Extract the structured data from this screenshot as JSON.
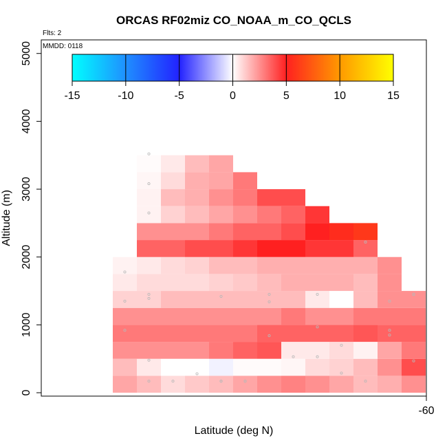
{
  "chart_data": {
    "type": "heatmap",
    "title": "ORCAS RF02miz CO_NOAA_m_CO_QCLS",
    "flights_label": "Flts: 2",
    "date_label": "MMDD: 0118",
    "xlabel": "Latitude (deg N)",
    "ylabel": "Altitude (m)",
    "x_tick_labels": [
      "-60"
    ],
    "y_tick_labels": [
      "0",
      "1000",
      "2000",
      "3000",
      "4000",
      "5000"
    ],
    "y_ticks": [
      0,
      1000,
      2000,
      3000,
      4000,
      5000
    ],
    "ylim": [
      -50,
      5200
    ],
    "colorbar": {
      "range": [
        -15,
        15
      ],
      "tick_labels": [
        "-15",
        "-10",
        "-5",
        "0",
        "5",
        "10",
        "15"
      ],
      "ticks": [
        -15,
        -10,
        -5,
        0,
        5,
        10,
        15
      ],
      "stops": [
        {
          "v": -15,
          "color": "#00ffff"
        },
        {
          "v": -10,
          "color": "#1f8fff"
        },
        {
          "v": -5,
          "color": "#2222ff"
        },
        {
          "v": 0,
          "color": "#ffffff"
        },
        {
          "v": 5,
          "color": "#ff2020"
        },
        {
          "v": 10,
          "color": "#ff9900"
        },
        {
          "v": 15,
          "color": "#ffff00"
        }
      ]
    },
    "altitude_bins_m": [
      0,
      250,
      500,
      750,
      1000,
      1250,
      1500,
      1750,
      2000,
      2250,
      2500,
      2750,
      3000,
      3250,
      3500
    ],
    "column_ranges": [
      [
        0,
        2000
      ],
      [
        0,
        3250
      ],
      [
        0,
        3500
      ],
      [
        0,
        3250
      ],
      [
        0,
        3250
      ],
      [
        0,
        3000
      ],
      [
        0,
        2750
      ],
      [
        0,
        2750
      ],
      [
        0,
        2500
      ],
      [
        0,
        2250
      ],
      [
        0,
        2250
      ],
      [
        0,
        2000
      ],
      [
        0,
        1500
      ]
    ],
    "values": [
      [
        2.0,
        1.5,
        0.8,
        1.2,
        1.5,
        2.0,
        2.5,
        2.8,
        2.5,
        2.0,
        1.5,
        1.8,
        2.5
      ],
      [
        1.5,
        0.5,
        0.0,
        0.0,
        -0.3,
        0.1,
        0.1,
        0.2,
        0.8,
        1.0,
        1.5,
        2.5,
        4.0
      ],
      [
        2.5,
        2.5,
        2.5,
        2.5,
        3.0,
        3.5,
        3.8,
        0.5,
        0.5,
        0.8,
        0.3,
        2.0,
        3.0
      ],
      [
        3.0,
        3.0,
        3.0,
        3.0,
        3.0,
        3.0,
        3.5,
        3.5,
        3.5,
        3.5,
        3.8,
        3.5,
        3.5
      ],
      [
        2.5,
        2.5,
        2.5,
        2.5,
        2.5,
        2.5,
        2.5,
        3.0,
        2.5,
        2.5,
        3.0,
        3.0,
        3.0
      ],
      [
        1.0,
        1.0,
        1.5,
        1.5,
        1.5,
        1.5,
        1.5,
        1.5,
        0.5,
        0.0,
        1.5,
        2.5,
        2.5
      ],
      [
        0.5,
        0.8,
        0.8,
        0.8,
        1.0,
        1.2,
        1.5,
        1.8,
        1.8,
        1.8,
        1.5,
        2.5,
        null
      ],
      [
        0.3,
        0.5,
        0.8,
        1.0,
        1.5,
        1.5,
        1.8,
        1.8,
        1.8,
        1.8,
        1.8,
        2.5,
        null
      ],
      [
        null,
        3.5,
        3.5,
        4.0,
        4.0,
        4.5,
        5.0,
        5.0,
        4.5,
        4.5,
        3.5,
        null,
        null
      ],
      [
        null,
        2.5,
        2.5,
        2.5,
        3.0,
        3.5,
        3.5,
        4.0,
        5.0,
        5.5,
        6.0,
        null,
        null
      ],
      [
        null,
        0.3,
        1.0,
        1.5,
        2.0,
        2.5,
        3.0,
        3.5,
        4.5,
        null,
        null,
        null,
        null
      ],
      [
        null,
        0.3,
        1.5,
        1.8,
        2.5,
        3.0,
        4.0,
        4.0,
        null,
        null,
        null,
        null,
        null
      ],
      [
        null,
        0.2,
        0.8,
        1.8,
        2.0,
        3.0,
        null,
        null,
        null,
        null,
        null,
        null,
        null
      ],
      [
        null,
        0.1,
        0.5,
        1.5,
        2.0,
        null,
        null,
        null,
        null,
        null,
        null,
        null,
        null
      ]
    ],
    "sample_points": [
      [
        1,
        3520
      ],
      [
        1,
        3080
      ],
      [
        1,
        2650
      ],
      [
        0,
        1780
      ],
      [
        0,
        1350
      ],
      [
        1,
        1390
      ],
      [
        1,
        1450
      ],
      [
        4,
        1420
      ],
      [
        6,
        1450
      ],
      [
        6,
        1340
      ],
      [
        8,
        1450
      ],
      [
        0,
        920
      ],
      [
        1,
        480
      ],
      [
        1,
        170
      ],
      [
        2,
        170
      ],
      [
        3,
        280
      ],
      [
        4,
        170
      ],
      [
        4,
        170
      ],
      [
        5,
        170
      ],
      [
        5,
        170
      ],
      [
        7,
        530
      ],
      [
        8,
        530
      ],
      [
        9,
        700
      ],
      [
        9,
        290
      ],
      [
        11,
        920
      ],
      [
        11,
        850
      ],
      [
        12,
        1450
      ],
      [
        12,
        1450
      ],
      [
        11,
        1350
      ],
      [
        12,
        470
      ],
      [
        10,
        170
      ],
      [
        8,
        970
      ],
      [
        10,
        2220
      ],
      [
        6,
        840
      ]
    ],
    "x_columns": 13,
    "grid": false,
    "legend": "colorbar-top"
  }
}
